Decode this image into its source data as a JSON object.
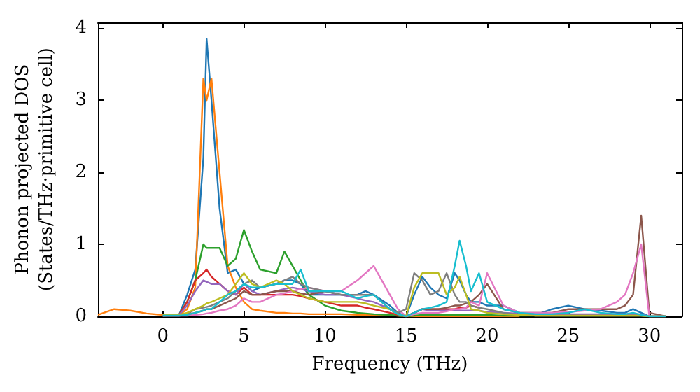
{
  "chart_data": {
    "type": "line",
    "xlabel": "Frequency (THz)",
    "ylabel": "Phonon projected DOS\n(States/THz·primitive cell)",
    "x": [
      -4,
      -3,
      -2,
      -1,
      0,
      1,
      1.5,
      2,
      2.5,
      2.7,
      3,
      3.5,
      4,
      4.5,
      5,
      5.5,
      6,
      7,
      7.5,
      8,
      8.5,
      9,
      10,
      11,
      12,
      12.5,
      13,
      14,
      14.5,
      15,
      15.5,
      16,
      16.5,
      17,
      17.5,
      18,
      18.3,
      18.7,
      19,
      19.5,
      20,
      21,
      22,
      23,
      24,
      25,
      26,
      27,
      28,
      28.5,
      29,
      29.5,
      30,
      31
    ],
    "xlim": [
      -4,
      32
    ],
    "xticks": [
      0,
      5,
      10,
      15,
      20,
      25,
      30
    ],
    "ylim": [
      0,
      4.08
    ],
    "yticks": [
      0,
      1,
      2,
      3,
      4
    ],
    "grid": false,
    "marker": "none",
    "series": [
      {
        "color": "#1f77b4",
        "values": [
          null,
          null,
          null,
          null,
          0.02,
          0.02,
          0.3,
          0.65,
          2.2,
          3.85,
          3.0,
          1.5,
          0.6,
          0.65,
          0.45,
          0.35,
          0.4,
          0.45,
          0.5,
          0.5,
          0.45,
          0.3,
          0.3,
          0.3,
          0.3,
          0.35,
          0.3,
          0.15,
          0.05,
          0,
          0.3,
          0.55,
          0.4,
          0.3,
          0.25,
          0.6,
          0.5,
          0.3,
          0.2,
          0.2,
          0.15,
          0.15,
          0.05,
          0.02,
          0.1,
          0.15,
          0.1,
          0.08,
          0.05,
          0.05,
          0.1,
          0.05,
          0,
          0
        ]
      },
      {
        "color": "#ff7f0e",
        "values": [
          0.02,
          0.1,
          0.08,
          0.04,
          0.02,
          0.02,
          0.1,
          0.4,
          3.3,
          3.0,
          3.3,
          2.0,
          0.7,
          0.4,
          0.2,
          0.1,
          0.08,
          0.05,
          0.05,
          0.04,
          0.04,
          0.03,
          0.03,
          0.03,
          0.02,
          0.02,
          0.02,
          0.02,
          0.01,
          0,
          0,
          0,
          0,
          0,
          0,
          0,
          0,
          0,
          0,
          0,
          0,
          0,
          0,
          null,
          null,
          null,
          null,
          null,
          null,
          null,
          null,
          null,
          null,
          null
        ]
      },
      {
        "color": "#2ca02c",
        "values": [
          null,
          null,
          null,
          null,
          0.01,
          0.02,
          0.2,
          0.5,
          1.0,
          0.95,
          0.95,
          0.95,
          0.7,
          0.8,
          1.2,
          0.9,
          0.65,
          0.6,
          0.9,
          0.7,
          0.5,
          0.3,
          0.15,
          0.08,
          0.05,
          0.04,
          0.03,
          0.02,
          0.01,
          0,
          0.01,
          0.02,
          0.02,
          0.02,
          0.02,
          0.02,
          0.02,
          0.02,
          0.02,
          0.02,
          0.02,
          0.01,
          0.01,
          0.01,
          0.01,
          0.01,
          0.01,
          0.01,
          0.01,
          0.01,
          0.01,
          0.01,
          0,
          0
        ]
      },
      {
        "color": "#d62728",
        "values": [
          null,
          null,
          null,
          null,
          0.01,
          0.02,
          0.2,
          0.5,
          0.6,
          0.65,
          0.55,
          0.45,
          0.35,
          0.3,
          0.4,
          0.3,
          0.3,
          0.3,
          0.3,
          0.3,
          0.28,
          0.25,
          0.2,
          0.15,
          0.15,
          0.12,
          0.1,
          0.05,
          0.02,
          0,
          0.05,
          0.1,
          0.1,
          0.1,
          0.1,
          0.1,
          0.12,
          0.12,
          0.15,
          0.12,
          null,
          null,
          null,
          null,
          null,
          null,
          null,
          null,
          null,
          null,
          null,
          null,
          null,
          null
        ]
      },
      {
        "color": "#9467bd",
        "values": [
          null,
          null,
          null,
          null,
          0.01,
          0.02,
          0.15,
          0.35,
          0.5,
          0.48,
          0.45,
          0.45,
          0.35,
          0.3,
          0.45,
          0.35,
          0.3,
          0.35,
          0.38,
          0.4,
          0.38,
          0.35,
          0.3,
          0.3,
          0.25,
          0.22,
          0.2,
          0.1,
          0.03,
          0,
          0.05,
          0.1,
          0.08,
          0.08,
          0.08,
          0.08,
          0.08,
          0.08,
          0.08,
          0.08,
          0.06,
          0.05,
          0.04,
          0.03,
          0.03,
          0.03,
          0.03,
          0.03,
          0.03,
          0.03,
          0.03,
          0.03,
          0,
          0
        ]
      },
      {
        "color": "#8c564b",
        "values": [
          null,
          null,
          null,
          null,
          0.01,
          0.01,
          0.02,
          0.05,
          0.08,
          0.1,
          0.1,
          0.15,
          0.2,
          0.25,
          0.35,
          0.3,
          0.3,
          0.35,
          0.35,
          0.35,
          0.32,
          0.3,
          0.35,
          0.3,
          0.3,
          0.3,
          0.3,
          0.1,
          0.03,
          0,
          0.05,
          0.1,
          0.1,
          0.1,
          0.12,
          0.15,
          0.15,
          0.18,
          0.2,
          0.3,
          0.45,
          0.1,
          0.05,
          0.05,
          0.05,
          0.1,
          0.1,
          0.1,
          0.1,
          0.15,
          0.3,
          1.4,
          0.05,
          0
        ]
      },
      {
        "color": "#e377c2",
        "values": [
          null,
          null,
          null,
          null,
          0.01,
          0.01,
          0.01,
          0.02,
          0.03,
          0.04,
          0.05,
          0.08,
          0.1,
          0.15,
          0.25,
          0.2,
          0.2,
          0.3,
          0.32,
          0.35,
          0.38,
          0.4,
          0.35,
          0.35,
          0.5,
          0.6,
          0.7,
          0.3,
          0.1,
          0,
          0.03,
          0.05,
          0.05,
          0.05,
          0.07,
          0.1,
          0.1,
          0.12,
          0.2,
          0.15,
          0.6,
          0.15,
          0.05,
          0.05,
          0.05,
          0.06,
          0.08,
          0.1,
          0.2,
          0.3,
          0.6,
          1.0,
          0,
          0
        ]
      },
      {
        "color": "#7f7f7f",
        "values": [
          null,
          null,
          null,
          null,
          0.01,
          0.01,
          0.03,
          0.1,
          0.12,
          0.13,
          0.15,
          0.2,
          0.25,
          0.35,
          0.45,
          0.5,
          0.4,
          0.45,
          0.5,
          0.55,
          0.45,
          0.4,
          0.35,
          0.3,
          0.3,
          0.3,
          0.3,
          0.1,
          0.05,
          0.1,
          0.6,
          0.5,
          0.3,
          0.35,
          0.6,
          0.3,
          0.2,
          0.2,
          0.15,
          0.12,
          0.1,
          0.05,
          0.02,
          0.01,
          0.01,
          0.01,
          0.01,
          0.01,
          0.01,
          0.01,
          0.01,
          0.01,
          0,
          0
        ]
      },
      {
        "color": "#bcbd22",
        "values": [
          null,
          null,
          null,
          null,
          0.02,
          0.02,
          0.05,
          0.1,
          0.15,
          0.18,
          0.2,
          0.25,
          0.3,
          0.45,
          0.6,
          0.45,
          0.4,
          0.5,
          0.45,
          0.35,
          0.3,
          0.25,
          0.2,
          0.2,
          0.2,
          0.18,
          0.15,
          0.1,
          0.03,
          0,
          0.4,
          0.6,
          0.6,
          0.6,
          0.3,
          0.4,
          0.55,
          0.3,
          0.1,
          0.08,
          0.05,
          0.03,
          0.02,
          0.01,
          0.01,
          0.01,
          0.01,
          0.01,
          0.01,
          0.01,
          0.01,
          0.01,
          0,
          0
        ]
      },
      {
        "color": "#17becf",
        "values": [
          null,
          null,
          null,
          null,
          0.01,
          0.01,
          0.02,
          0.05,
          0.08,
          0.1,
          0.1,
          0.2,
          0.3,
          0.35,
          0.45,
          0.4,
          0.4,
          0.45,
          0.45,
          0.45,
          0.65,
          0.35,
          0.35,
          0.35,
          0.25,
          0.28,
          0.3,
          0.1,
          0.03,
          0,
          0.05,
          0.1,
          0.12,
          0.15,
          0.2,
          0.7,
          1.05,
          0.7,
          0.35,
          0.6,
          0.2,
          0.1,
          0.05,
          0.03,
          0.03,
          0.05,
          0.1,
          0.05,
          0.03,
          0.03,
          0.05,
          0.02,
          0,
          0
        ]
      }
    ]
  }
}
